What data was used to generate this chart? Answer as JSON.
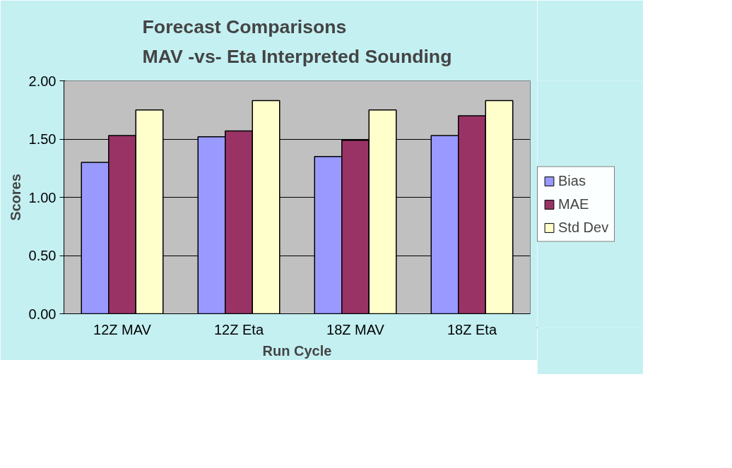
{
  "chart_data": {
    "type": "bar",
    "title": "Forecast Comparisons\nMAV -vs- Eta Interpreted Sounding",
    "xlabel": "Run Cycle",
    "ylabel": "Scores",
    "categories": [
      "12Z MAV",
      "12Z Eta",
      "18Z MAV",
      "18Z Eta"
    ],
    "series": [
      {
        "name": "Bias",
        "color": "#9999ff",
        "values": [
          1.3,
          1.52,
          1.35,
          1.53
        ]
      },
      {
        "name": "MAE",
        "color": "#993366",
        "values": [
          1.53,
          1.57,
          1.49,
          1.7
        ]
      },
      {
        "name": "Std Dev",
        "color": "#ffffcc",
        "values": [
          1.75,
          1.83,
          1.75,
          1.83
        ]
      }
    ],
    "ylim": [
      0,
      2
    ],
    "yticks": [
      {
        "value": 0,
        "label": "0.00"
      },
      {
        "value": 0.5,
        "label": "0.50"
      },
      {
        "value": 1,
        "label": "1.00"
      },
      {
        "value": 1.5,
        "label": "1.50"
      },
      {
        "value": 2,
        "label": "2.00"
      }
    ],
    "grid": "y",
    "legend": "right"
  }
}
